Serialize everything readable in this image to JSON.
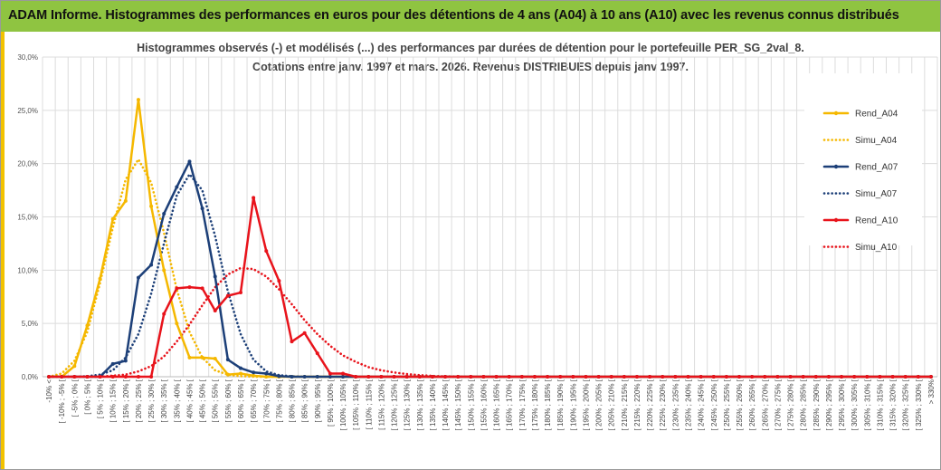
{
  "header": {
    "title": "ADAM Informe. Histogrammes des performances en euros pour des détentions de 4 ans (A04) à 10 ans (A10) avec les revenus connus distribués"
  },
  "colors": {
    "banner": "#8fc441",
    "accent": "#f2c200",
    "A04": "#f5b800",
    "A07": "#1c3f78",
    "A10": "#e8131b"
  },
  "chart_data": {
    "type": "line",
    "title": "Histogrammes observés (-) et modélisés (...) des performances par durées de détention pour le portefeuille PER_SG_2val_8.",
    "subtitle": "Cotations entre janv. 1997 et mars. 2026. Revenus DISTRIBUES depuis janv 1997.",
    "ylim": [
      0,
      30
    ],
    "yticks": [
      "0,0%",
      "5,0%",
      "10,0%",
      "15,0%",
      "20,0%",
      "25,0%",
      "30,0%"
    ],
    "grid": true,
    "legend_position": "right",
    "categories": [
      "-10% <",
      "[ -10% ; -5% [",
      "[ -5% ; 0% [",
      "[ 0% ; 5% [",
      "[ 5% ; 10% [",
      "[ 10% ; 15% [",
      "[ 15% ; 20% [",
      "[ 20% ; 25% [",
      "[ 25% ; 30% [",
      "[ 30% ; 35% [",
      "[ 35% ; 40% [",
      "[ 40% ; 45% [",
      "[ 45% ; 50% [",
      "[ 50% ; 55% [",
      "[ 55% ; 60% [",
      "[ 60% ; 65% [",
      "[ 65% ; 70% [",
      "[ 70% ; 75% [",
      "[ 75% ; 80% [",
      "[ 80% ; 85% [",
      "[ 85% ; 90% [",
      "[ 90% ; 95% [",
      "[ 95% ; 100% [",
      "[ 100% ; 105% [",
      "[ 105% ; 110% [",
      "[ 110% ; 115% [",
      "[ 115% ; 120% [",
      "[ 120% ; 125% [",
      "[ 125% ; 130% [",
      "[ 130% ; 135% [",
      "[ 135% ; 140% [",
      "[ 140% ; 145% [",
      "[ 145% ; 150% [",
      "[ 150% ; 155% [",
      "[ 155% ; 160% [",
      "[ 160% ; 165% [",
      "[ 165% ; 170% [",
      "[ 170% ; 175% [",
      "[ 175% ; 180% [",
      "[ 180% ; 185% [",
      "[ 185% ; 190% [",
      "[ 190% ; 195% [",
      "[ 195% ; 200% [",
      "[ 200% ; 205% [",
      "[ 205% ; 210% [",
      "[ 210% ; 215% [",
      "[ 215% ; 220% [",
      "[ 220% ; 225% [",
      "[ 225% ; 230% [",
      "[ 230% ; 235% [",
      "[ 235% ; 240% [",
      "[ 240% ; 245% [",
      "[ 245% ; 250% [",
      "[ 250% ; 255% [",
      "[ 255% ; 260% [",
      "[ 260% ; 265% [",
      "[ 265% ; 270% [",
      "[ 270% ; 275% [",
      "[ 275% ; 280% [",
      "[ 280% ; 285% [",
      "[ 285% ; 290% [",
      "[ 290% ; 295% [",
      "[ 295% ; 300% [",
      "[ 300% ; 305% [",
      "[ 305% ; 310% [",
      "[ 310% ; 315% [",
      "[ 315% ; 320% [",
      "[ 320% ; 325% [",
      "[ 325% ; 330% [",
      "> 330%"
    ],
    "series": [
      {
        "name": "Rend_A04",
        "style": "solid",
        "color": "#f5b800",
        "values": [
          0,
          0,
          1.0,
          4.8,
          9.2,
          14.8,
          16.5,
          26.0,
          16.0,
          10.0,
          5.0,
          1.8,
          1.8,
          1.7,
          0.2,
          0.3,
          0.1,
          0,
          0,
          0,
          0,
          0,
          0,
          0,
          0,
          0,
          0,
          0,
          0,
          0,
          0,
          0,
          0,
          0,
          0,
          0,
          0,
          0,
          0,
          0,
          0,
          0,
          0,
          0,
          0,
          0,
          0,
          0,
          0,
          0,
          0,
          0,
          0,
          0,
          0,
          0,
          0,
          0,
          0,
          0,
          0,
          0,
          0,
          0,
          0,
          0,
          0,
          0,
          0,
          0
        ]
      },
      {
        "name": "Simu_A04",
        "style": "dotted",
        "color": "#f5b800",
        "values": [
          0,
          0.3,
          1.5,
          4.2,
          8.8,
          14.0,
          18.5,
          20.4,
          18.2,
          13.5,
          8.2,
          4.2,
          1.8,
          0.6,
          0.2,
          0.05,
          0,
          0,
          0,
          0,
          0,
          0,
          0,
          0,
          0,
          0,
          0,
          0,
          0,
          0,
          0,
          0,
          0,
          0,
          0,
          0,
          0,
          0,
          0,
          0,
          0,
          0,
          0,
          0,
          0,
          0,
          0,
          0,
          0,
          0,
          0,
          0,
          0,
          0,
          0,
          0,
          0,
          0,
          0,
          0,
          0,
          0,
          0,
          0,
          0,
          0,
          0,
          0,
          0,
          0
        ]
      },
      {
        "name": "Rend_A07",
        "style": "solid",
        "color": "#1c3f78",
        "values": [
          0,
          0,
          0,
          0,
          0,
          1.2,
          1.5,
          9.3,
          10.5,
          15.3,
          17.8,
          20.2,
          15.8,
          9.4,
          1.6,
          0.8,
          0.4,
          0.3,
          0.05,
          0,
          0,
          0,
          0,
          0,
          0,
          0,
          0,
          0,
          0,
          0,
          0,
          0,
          0,
          0,
          0,
          0,
          0,
          0,
          0,
          0,
          0,
          0,
          0,
          0,
          0,
          0,
          0,
          0,
          0,
          0,
          0,
          0,
          0,
          0,
          0,
          0,
          0,
          0,
          0,
          0,
          0,
          0,
          0,
          0,
          0,
          0,
          0,
          0,
          0,
          0
        ]
      },
      {
        "name": "Simu_A07",
        "style": "dotted",
        "color": "#1c3f78",
        "values": [
          0,
          0,
          0,
          0.05,
          0.2,
          0.6,
          1.8,
          4.0,
          7.8,
          12.5,
          17.0,
          19.0,
          17.5,
          13.2,
          8.0,
          4.0,
          1.6,
          0.5,
          0.15,
          0.05,
          0,
          0,
          0,
          0,
          0,
          0,
          0,
          0,
          0,
          0,
          0,
          0,
          0,
          0,
          0,
          0,
          0,
          0,
          0,
          0,
          0,
          0,
          0,
          0,
          0,
          0,
          0,
          0,
          0,
          0,
          0,
          0,
          0,
          0,
          0,
          0,
          0,
          0,
          0,
          0,
          0,
          0,
          0,
          0,
          0,
          0,
          0,
          0,
          0,
          0
        ]
      },
      {
        "name": "Rend_A10",
        "style": "solid",
        "color": "#e8131b",
        "values": [
          0,
          0,
          0,
          0,
          0,
          0,
          0,
          0,
          0,
          5.9,
          8.3,
          8.4,
          8.3,
          6.2,
          7.6,
          7.9,
          16.8,
          11.8,
          9.0,
          3.3,
          4.1,
          2.2,
          0.3,
          0.3,
          0,
          0,
          0,
          0,
          0,
          0,
          0,
          0,
          0,
          0,
          0,
          0,
          0,
          0,
          0,
          0,
          0,
          0,
          0,
          0,
          0,
          0,
          0,
          0,
          0,
          0,
          0,
          0,
          0,
          0,
          0,
          0,
          0,
          0,
          0,
          0,
          0,
          0,
          0,
          0,
          0,
          0,
          0,
          0,
          0,
          0
        ]
      },
      {
        "name": "Simu_A10",
        "style": "dotted",
        "color": "#e8131b",
        "values": [
          0,
          0,
          0,
          0,
          0,
          0.1,
          0.2,
          0.5,
          1.0,
          1.9,
          3.3,
          4.9,
          6.7,
          8.4,
          9.6,
          10.2,
          10.1,
          9.4,
          8.2,
          6.8,
          5.3,
          4.0,
          2.9,
          2.0,
          1.4,
          0.9,
          0.6,
          0.4,
          0.25,
          0.15,
          0.08,
          0.04,
          0.02,
          0,
          0,
          0,
          0,
          0,
          0,
          0,
          0,
          0,
          0,
          0,
          0,
          0,
          0,
          0,
          0,
          0,
          0,
          0,
          0,
          0,
          0,
          0,
          0,
          0,
          0,
          0,
          0,
          0,
          0,
          0,
          0,
          0,
          0,
          0,
          0,
          0
        ]
      }
    ]
  }
}
